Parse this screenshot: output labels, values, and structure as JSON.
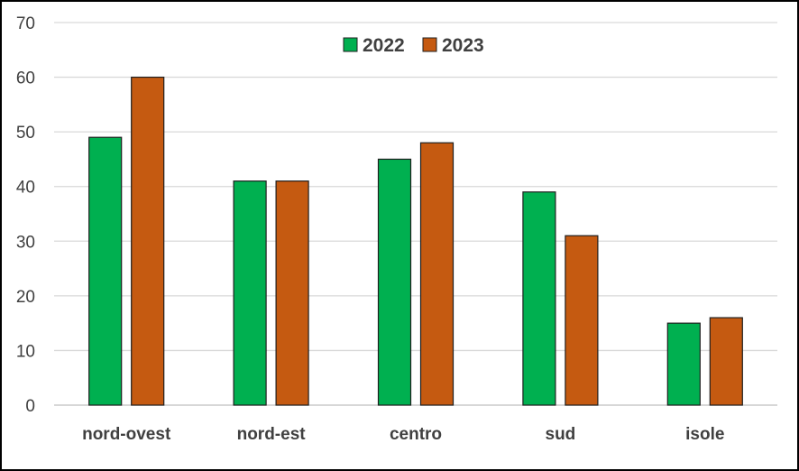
{
  "chart_data": {
    "type": "bar",
    "title": "",
    "xlabel": "",
    "ylabel": "",
    "categories": [
      "nord-ovest",
      "nord-est",
      "centro",
      "sud",
      "isole"
    ],
    "series": [
      {
        "name": "2022",
        "values": [
          49,
          41,
          45,
          39,
          15
        ],
        "color": "#00b050"
      },
      {
        "name": "2023",
        "values": [
          60,
          41,
          48,
          31,
          16
        ],
        "color": "#c55a11"
      }
    ],
    "ylim": [
      0,
      70
    ],
    "yticks": [
      "0",
      "10",
      "20",
      "30",
      "40",
      "50",
      "60",
      "70"
    ],
    "grid": true,
    "legend": "top-center",
    "bar_outline": "#1f1f1f"
  }
}
